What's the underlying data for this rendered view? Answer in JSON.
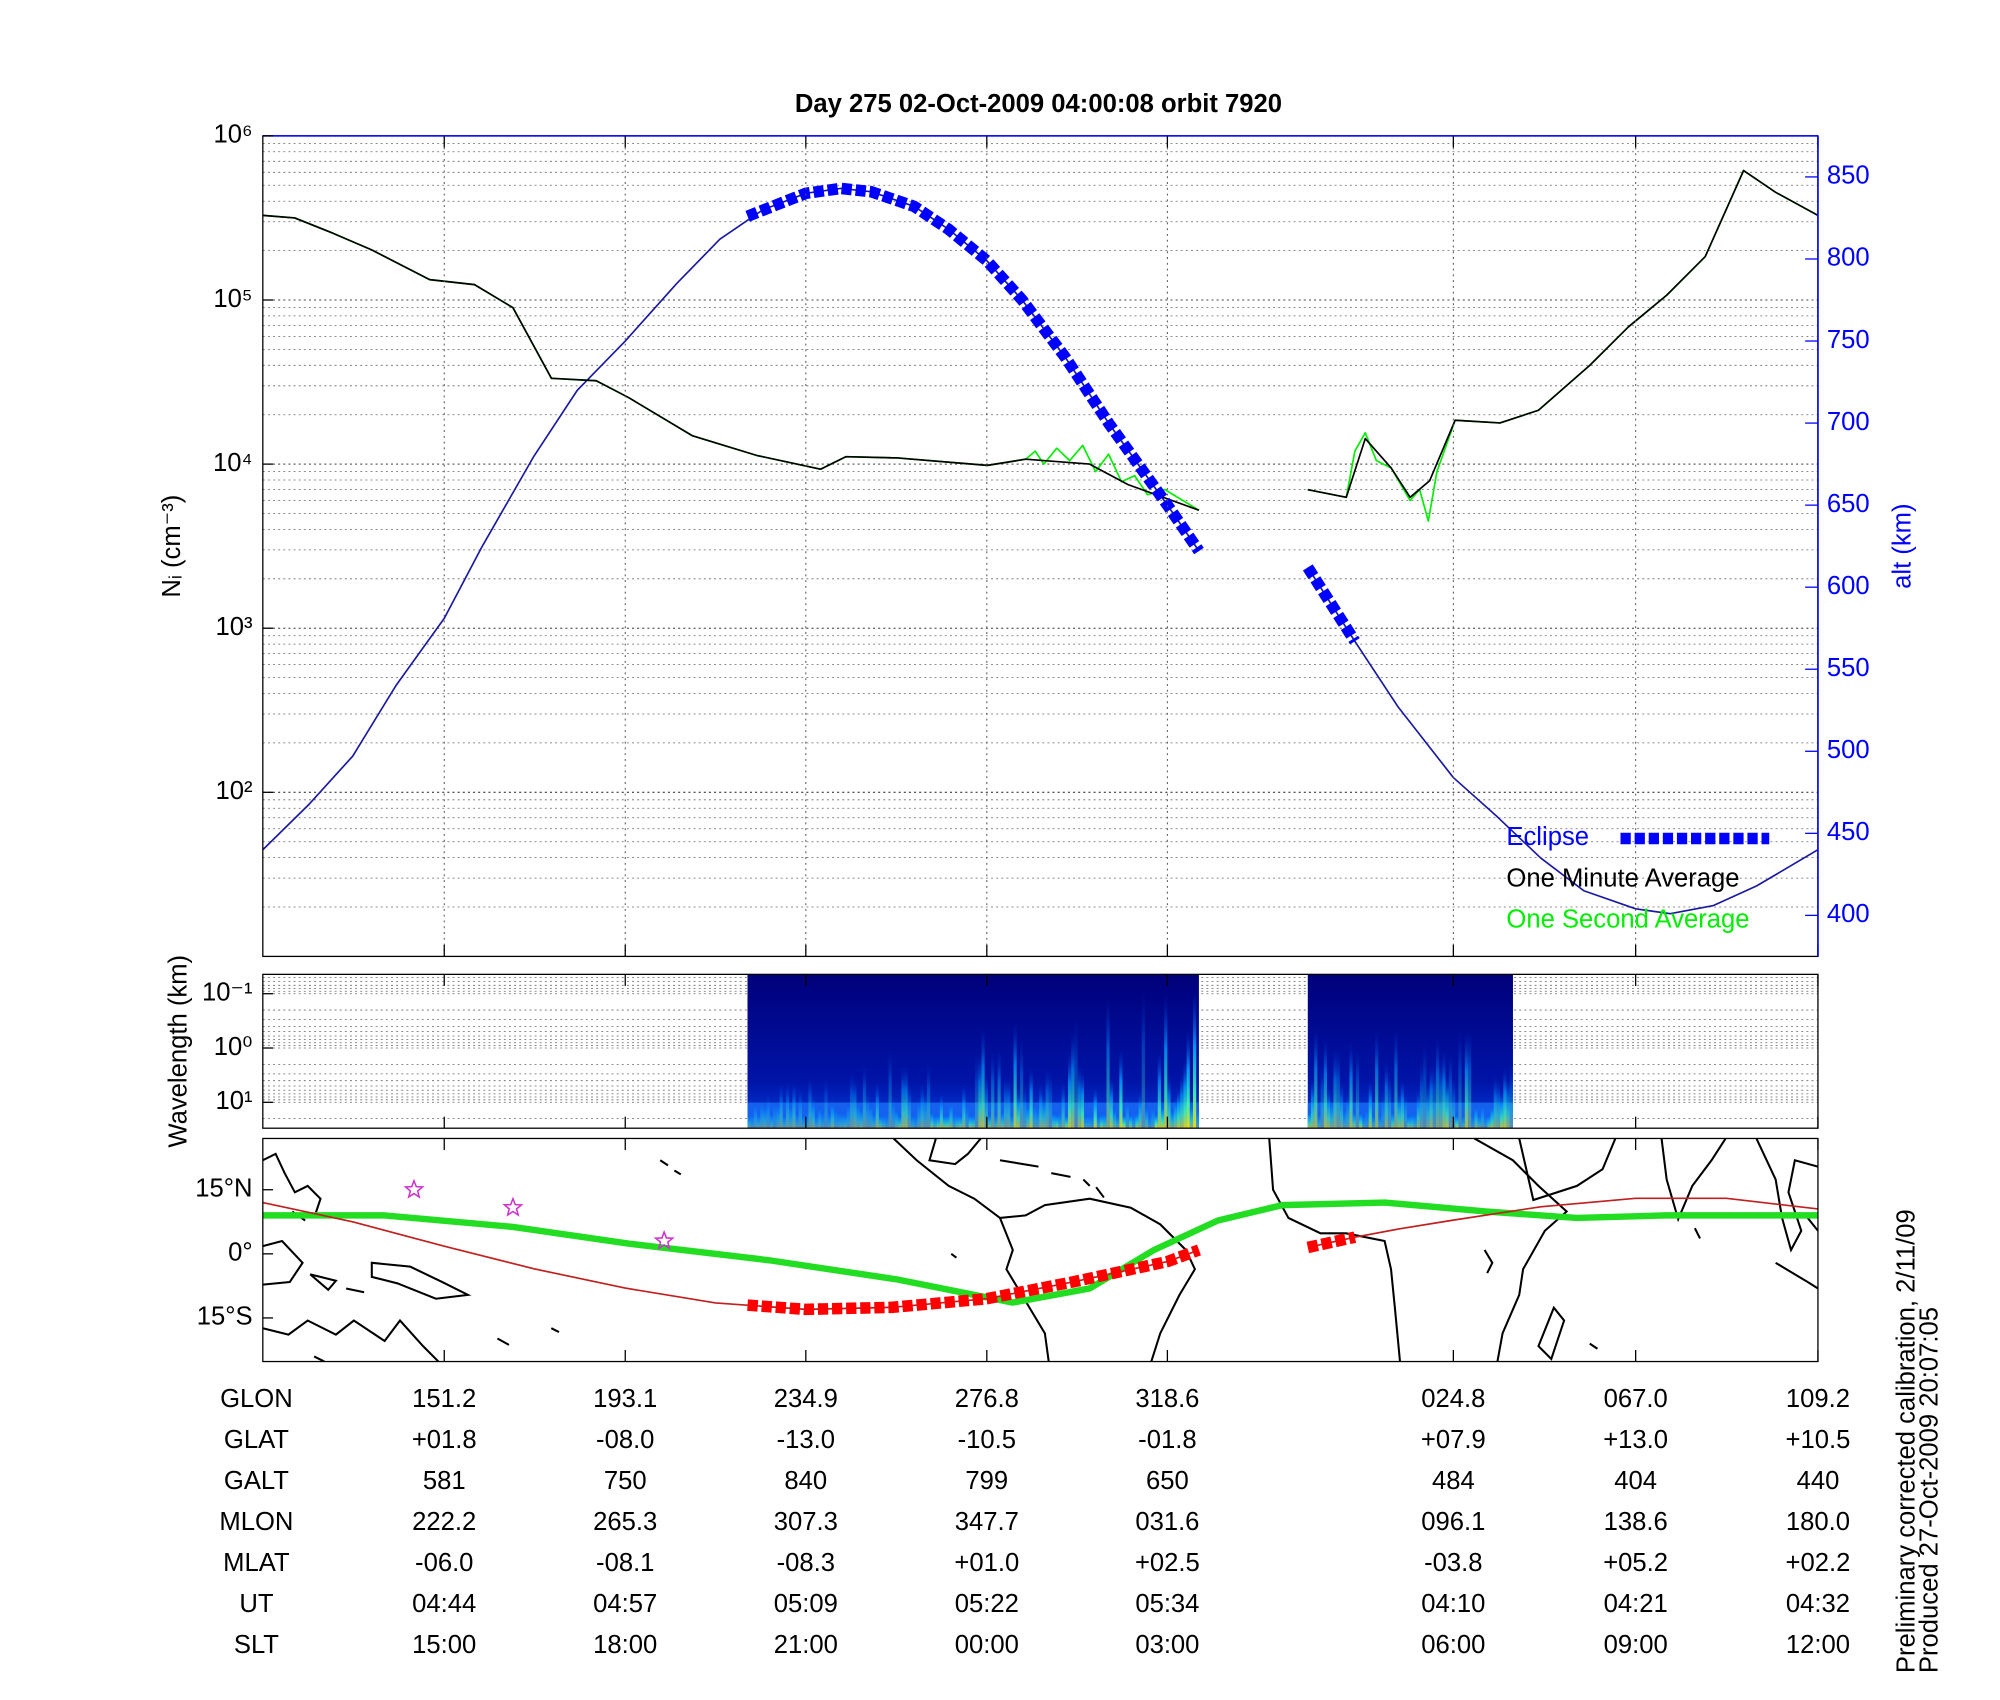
{
  "chart_data": [
    {
      "type": "line",
      "title": "Day 275  02-Oct-2009 04:00:08   orbit 7920",
      "ylabel": "Nᵢ (cm⁻³)",
      "y2label": "alt (km)",
      "log_y": true,
      "grid": true,
      "minor_grid": true,
      "legend": "lower right",
      "xlim": [
        109.2,
        469.2
      ],
      "xticks": [
        151.2,
        193.1,
        234.9,
        276.8,
        318.6,
        384.8,
        427.0,
        469.2
      ],
      "ylim": [
        10,
        1000000
      ],
      "yticks": [
        {
          "value": 100,
          "label": "10²"
        },
        {
          "value": 1000,
          "label": "10³"
        },
        {
          "value": 10000,
          "label": "10⁴"
        },
        {
          "value": 100000,
          "label": "10⁵"
        },
        {
          "value": 1000000,
          "label": "10⁶"
        }
      ],
      "y2lim": [
        375,
        875
      ],
      "y2ticks": [
        400,
        450,
        500,
        550,
        600,
        650,
        700,
        750,
        800,
        850
      ],
      "series": [
        {
          "name": "Eclipse",
          "color": "#0000ff",
          "style": "dashed-thick",
          "axis": "y2",
          "x": [
            221.4,
            234.9,
            243,
            250,
            260,
            268,
            276.8,
            285,
            295,
            305,
            318.6,
            325.9,
            338,
            351.1,
            362
          ],
          "values": [
            826,
            840,
            843,
            841,
            832,
            818,
            799,
            775,
            740,
            700,
            650,
            622,
            null,
            612,
            567
          ]
        },
        {
          "name": "One Minute Average",
          "color": "#000000",
          "x": [
            109.2,
            116.6,
            125.5,
            134.4,
            147.8,
            158.2,
            167.1,
            176.0,
            186.4,
            193.8,
            208.6,
            223.5,
            238.3,
            244.2,
            256.1,
            276.9,
            285.8,
            300.6,
            309.5,
            325.9,
            338,
            351.1,
            360.0,
            364.4,
            370.4,
            374.8,
            379.3,
            385.2,
            395.6,
            404.5,
            416.4,
            425.3,
            434.2,
            443.1,
            452.0,
            459.4,
            469.2
          ],
          "values": [
            328000,
            316000,
            255000,
            202000,
            133000,
            124000,
            89800,
            33300,
            32200,
            25500,
            14900,
            11300,
            9300,
            11100,
            10900,
            9820,
            10700,
            10000,
            7500,
            5230,
            null,
            6980,
            6270,
            14300,
            9480,
            6270,
            7910,
            18500,
            17800,
            21300,
            40000,
            68500,
            107000,
            184000,
            615000,
            453000,
            328000
          ]
        },
        {
          "name": "One Second Average",
          "color": "#00ee00",
          "x": [
            109.2,
            116.6,
            125.5,
            134.4,
            147.8,
            158.2,
            167.1,
            176.0,
            186.4,
            193.8,
            208.6,
            223.5,
            238.3,
            244.2,
            256.1,
            276.9,
            285.8,
            288,
            290,
            293,
            296,
            299,
            302,
            305,
            308,
            311,
            314,
            318,
            325.9,
            338,
            351.1,
            360.0,
            362,
            364.4,
            367,
            370.4,
            374.8,
            377,
            379,
            381,
            385.2,
            395.6,
            404.5,
            416.4,
            425.3,
            434.2,
            443.1,
            452.0,
            459.4,
            469.2
          ],
          "values": [
            328000,
            316000,
            255000,
            202000,
            133000,
            124000,
            89800,
            33300,
            32200,
            25500,
            14900,
            11300,
            9300,
            11100,
            10900,
            9820,
            10700,
            12000,
            10000,
            12500,
            10500,
            13000,
            9000,
            11500,
            7800,
            8500,
            6500,
            7000,
            5230,
            null,
            6980,
            6270,
            12000,
            15500,
            10500,
            9480,
            6000,
            7000,
            4500,
            9000,
            18500,
            17800,
            21300,
            40000,
            68500,
            107000,
            184000,
            615000,
            453000,
            328000
          ]
        },
        {
          "color": "#1a1aa0",
          "axis": "y2",
          "x": [
            109.2,
            120,
            130,
            140,
            151.2,
            160,
            172,
            182,
            193.1,
            205,
            215,
            225,
            234.9,
            243,
            250,
            260,
            268,
            276.8,
            285,
            295,
            305,
            318.6,
            325.9,
            338,
            351.1,
            362,
            372,
            384.8,
            395,
            405,
            415,
            427,
            435,
            445,
            455,
            469.2
          ],
          "values": [
            440,
            468,
            497,
            540,
            581,
            625,
            680,
            720,
            750,
            785,
            812,
            830,
            840,
            843,
            841,
            832,
            818,
            799,
            775,
            740,
            700,
            650,
            622,
            null,
            612,
            567,
            527,
            484,
            460,
            435,
            415,
            404,
            401,
            406,
            418,
            440
          ]
        }
      ]
    },
    {
      "type": "spectrogram",
      "ylabel": "Wavelength (km)",
      "log_y": true,
      "minor_grid": true,
      "xlim": [
        109.2,
        469.2
      ],
      "xticks": [
        151.2,
        193.1,
        234.9,
        276.8,
        318.6,
        384.8,
        427.0,
        469.2
      ],
      "ylim": [
        30,
        0.044
      ],
      "yticks": [
        {
          "value": 0.1,
          "label": "10⁻¹"
        },
        {
          "value": 1,
          "label": "10⁰"
        },
        {
          "value": 10,
          "label": "10¹"
        }
      ],
      "blocks": [
        [
          221.4,
          325.9
        ],
        [
          351.1,
          398.6
        ]
      ]
    },
    {
      "type": "map",
      "xlim": [
        109.2,
        469.2
      ],
      "xticks": [
        151.2,
        193.1,
        234.9,
        276.8,
        318.6,
        384.8,
        427.0,
        469.2
      ],
      "ylim": [
        -25.2,
        27
      ],
      "yticks": [
        {
          "value": -15,
          "label": "15°S"
        },
        {
          "value": 0,
          "label": "0°"
        },
        {
          "value": 15,
          "label": "15°N"
        }
      ],
      "series": [
        {
          "color": "#22dd22",
          "style": "thick",
          "x": [
            109.2,
            137.4,
            167.1,
            193.8,
            226.4,
            256.1,
            282.8,
            300.6,
            315.5,
            330.3,
            345.2,
            368.9,
            392.6,
            413.4,
            434.2,
            469.2
          ],
          "values": [
            9,
            9,
            6.3,
            2.4,
            -1.5,
            -6,
            -11.4,
            -8.1,
            0.9,
            7.8,
            11.4,
            12,
            9.9,
            8.4,
            9,
            9
          ]
        },
        {
          "color": "#c02020",
          "x": [
            109.2,
            130,
            151.2,
            172,
            193.1,
            214,
            234.9,
            255,
            276.8,
            297,
            318.6,
            325.9,
            338,
            351.1,
            362,
            372,
            384.8,
            405,
            427,
            448,
            469.2
          ],
          "values": [
            12,
            7.5,
            1.8,
            -3.5,
            -8.0,
            -11.5,
            -13.0,
            -12.5,
            -10.5,
            -6.5,
            -1.8,
            0.9,
            null,
            1.5,
            3.9,
            5.8,
            7.9,
            11,
            13,
            13,
            10.5
          ]
        },
        {
          "color": "#ff0000",
          "style": "dashed-thick",
          "x": [
            221.4,
            234.9,
            255,
            276.8,
            297,
            318.6,
            325.9,
            338,
            351.1,
            362
          ],
          "values": [
            -12.0,
            -13.0,
            -12.5,
            -10.5,
            -6.5,
            -1.8,
            0.9,
            null,
            1.5,
            3.9
          ]
        }
      ],
      "points": {
        "color": "#cc33cc",
        "x": [
          144.2,
          167.1,
          202.1
        ],
        "values": [
          15,
          10.8,
          3
        ]
      }
    }
  ],
  "table": {
    "rows": [
      {
        "label": "GLON",
        "values": [
          "151.2",
          "193.1",
          "234.9",
          "276.8",
          "318.6",
          "024.8",
          "067.0",
          "109.2"
        ]
      },
      {
        "label": "GLAT",
        "values": [
          "+01.8",
          "-08.0",
          "-13.0",
          "-10.5",
          "-01.8",
          "+07.9",
          "+13.0",
          "+10.5"
        ]
      },
      {
        "label": "GALT",
        "values": [
          "581",
          "750",
          "840",
          "799",
          "650",
          "484",
          "404",
          "440"
        ]
      },
      {
        "label": "MLON",
        "values": [
          "222.2",
          "265.3",
          "307.3",
          "347.7",
          "031.6",
          "096.1",
          "138.6",
          "180.0"
        ]
      },
      {
        "label": "MLAT",
        "values": [
          "-06.0",
          "-08.1",
          "-08.3",
          "+01.0",
          "+02.5",
          "-03.8",
          "+05.2",
          "+02.2"
        ]
      },
      {
        "label": "UT",
        "values": [
          "04:44",
          "04:57",
          "05:09",
          "05:22",
          "05:34",
          "04:10",
          "04:21",
          "04:32"
        ]
      },
      {
        "label": "SLT",
        "values": [
          "15:00",
          "18:00",
          "21:00",
          "00:00",
          "03:00",
          "06:00",
          "09:00",
          "12:00"
        ]
      }
    ]
  },
  "notes": [
    "Preliminary corrected calibration, 2/11/09",
    "Produced 27-Oct-2009 20:07:05"
  ]
}
